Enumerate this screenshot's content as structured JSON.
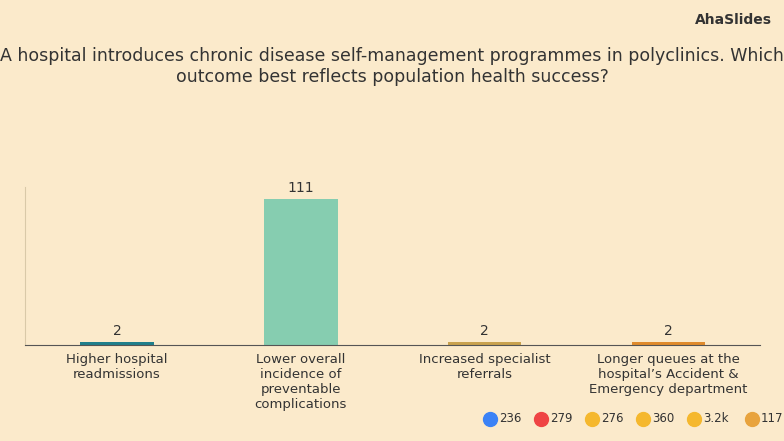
{
  "header": {
    "logo": "AhaSlides"
  },
  "chart_data": {
    "type": "bar",
    "title": "A hospital introduces chronic disease self-management programmes in polyclinics. Which outcome best reflects population health success?",
    "categories": [
      "Higher hospital readmissions",
      "Lower overall incidence of preventable complications",
      "Increased specialist referrals",
      "Longer queues at the hospital’s Accident & Emergency department"
    ],
    "values": [
      2,
      111,
      2,
      2
    ],
    "colors": [
      "#1f7f8c",
      "#86cdb0",
      "#c9a24e",
      "#e08b2c"
    ],
    "ylim": [
      0,
      120
    ],
    "data_labels": true,
    "tick_labels": "x"
  },
  "reactions": [
    236,
    279,
    276,
    360,
    {
      "value": 3200,
      "label": "3.2k"
    },
    117
  ]
}
